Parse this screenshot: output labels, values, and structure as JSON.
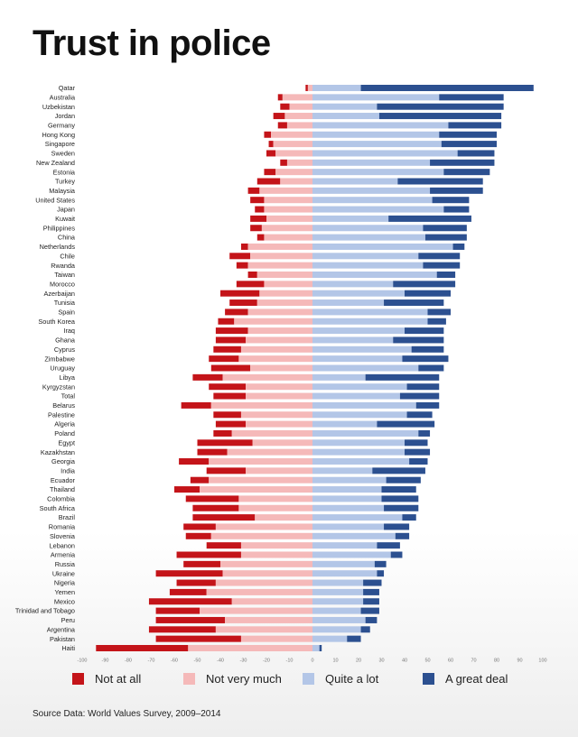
{
  "chart_data": {
    "type": "bar",
    "stacked": "diverging",
    "title": "Trust in police",
    "xlim": [
      -100,
      100
    ],
    "xticks": [
      -100,
      -90,
      -80,
      -70,
      -60,
      -50,
      -40,
      -30,
      -20,
      -10,
      0,
      10,
      20,
      30,
      40,
      50,
      60,
      70,
      80,
      90,
      100
    ],
    "grid": false,
    "legend_position": "bottom",
    "series": [
      {
        "name": "Not at all",
        "color": "#c41419"
      },
      {
        "name": "Not very much",
        "color": "#f5b9b9"
      },
      {
        "name": "Quite a lot",
        "color": "#b3c6e7"
      },
      {
        "name": "A great deal",
        "color": "#2c5090"
      }
    ],
    "categories": [
      "Qatar",
      "Australia",
      "Uzbekistan",
      "Jordan",
      "Germany",
      "Hong Kong",
      "Singapore",
      "Sweden",
      "New Zealand",
      "Estonia",
      "Turkey",
      "Malaysia",
      "United States",
      "Japan",
      "Kuwait",
      "Philippines",
      "China",
      "Netherlands",
      "Chile",
      "Rwanda",
      "Taiwan",
      "Morocco",
      "Azerbaijan",
      "Tunisia",
      "Spain",
      "South Korea",
      "Iraq",
      "Ghana",
      "Cyprus",
      "Zimbabwe",
      "Uruguay",
      "Libya",
      "Kyrgyzstan",
      "Total",
      "Belarus",
      "Palestine",
      "Algeria",
      "Poland",
      "Egypt",
      "Kazakhstan",
      "Georgia",
      "India",
      "Ecuador",
      "Thailand",
      "Colombia",
      "South Africa",
      "Brazil",
      "Romania",
      "Slovenia",
      "Lebanon",
      "Armenia",
      "Russia",
      "Ukraine",
      "Nigeria",
      "Yemen",
      "Mexico",
      "Trinidad and Tobago",
      "Peru",
      "Argentina",
      "Pakistan",
      "Haiti"
    ],
    "values": {
      "not_at_all": [
        1,
        2,
        4,
        5,
        4,
        3,
        2,
        4,
        3,
        5,
        10,
        5,
        6,
        4,
        7,
        5,
        3,
        3,
        9,
        5,
        4,
        12,
        17,
        12,
        10,
        7,
        14,
        13,
        12,
        13,
        17,
        13,
        16,
        14,
        13,
        12,
        13,
        8,
        24,
        13,
        13,
        17,
        8,
        11,
        23,
        20,
        27,
        14,
        11,
        15,
        28,
        16,
        29,
        17,
        16,
        36,
        19,
        30,
        29,
        37,
        40
      ],
      "not_very_much": [
        2,
        13,
        10,
        12,
        11,
        18,
        17,
        16,
        11,
        16,
        14,
        23,
        21,
        21,
        20,
        22,
        21,
        28,
        27,
        28,
        24,
        21,
        23,
        24,
        28,
        34,
        28,
        29,
        31,
        32,
        27,
        39,
        29,
        29,
        44,
        31,
        29,
        35,
        26,
        37,
        45,
        29,
        45,
        49,
        32,
        32,
        25,
        42,
        44,
        31,
        31,
        40,
        39,
        42,
        46,
        35,
        49,
        38,
        42,
        31,
        54
      ],
      "quite_a_lot": [
        21,
        55,
        28,
        29,
        59,
        55,
        56,
        63,
        51,
        57,
        37,
        51,
        52,
        57,
        33,
        48,
        49,
        61,
        46,
        48,
        54,
        35,
        40,
        31,
        50,
        50,
        40,
        35,
        43,
        39,
        46,
        23,
        41,
        38,
        45,
        41,
        28,
        46,
        40,
        40,
        42,
        26,
        32,
        30,
        30,
        31,
        39,
        31,
        36,
        28,
        34,
        27,
        28,
        22,
        22,
        22,
        21,
        23,
        21,
        15,
        3
      ],
      "a_great_deal": [
        75,
        28,
        55,
        53,
        23,
        25,
        24,
        16,
        28,
        20,
        37,
        23,
        16,
        11,
        36,
        19,
        18,
        5,
        18,
        16,
        8,
        27,
        20,
        26,
        10,
        8,
        17,
        22,
        14,
        20,
        11,
        32,
        14,
        17,
        10,
        11,
        25,
        5,
        10,
        11,
        8,
        23,
        15,
        15,
        16,
        15,
        6,
        11,
        6,
        10,
        5,
        5,
        3,
        8,
        7,
        7,
        8,
        5,
        4,
        6,
        1
      ]
    }
  },
  "source": "Source Data: World Values Survey, 2009–2014"
}
